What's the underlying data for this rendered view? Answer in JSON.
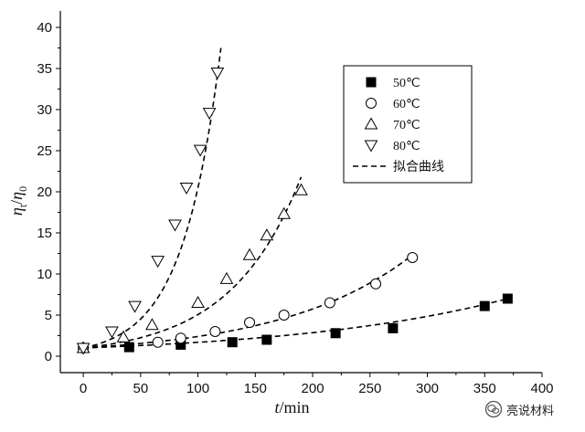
{
  "chart_data": {
    "type": "scatter",
    "xlabel_italic": "t",
    "xlabel_unit": "/min",
    "ylabel": "η_t/η_0",
    "xlim": [
      -20,
      400
    ],
    "ylim": [
      -2,
      42
    ],
    "x_ticks": [
      0,
      50,
      100,
      150,
      200,
      250,
      300,
      350,
      400
    ],
    "y_ticks": [
      0,
      5,
      10,
      15,
      20,
      25,
      30,
      35,
      40
    ],
    "legend_position": "top-right",
    "grid": false,
    "series": [
      {
        "name": "50℃",
        "marker": "filled-square",
        "points": [
          [
            0,
            1.0
          ],
          [
            40,
            1.1
          ],
          [
            85,
            1.4
          ],
          [
            130,
            1.7
          ],
          [
            160,
            2.0
          ],
          [
            220,
            2.8
          ],
          [
            270,
            3.4
          ],
          [
            350,
            6.1
          ],
          [
            370,
            7.0
          ]
        ],
        "fit": {
          "x_max": 370,
          "y_end": 7.0
        }
      },
      {
        "name": "60℃",
        "marker": "open-circle",
        "points": [
          [
            0,
            1.0
          ],
          [
            65,
            1.7
          ],
          [
            85,
            2.2
          ],
          [
            115,
            3.0
          ],
          [
            145,
            4.1
          ],
          [
            175,
            5.0
          ],
          [
            215,
            6.5
          ],
          [
            255,
            8.8
          ],
          [
            287,
            12.0
          ]
        ],
        "fit": {
          "x_max": 287,
          "y_end": 12.3
        }
      },
      {
        "name": "70℃",
        "marker": "open-triangle-up",
        "points": [
          [
            0,
            1.0
          ],
          [
            35,
            2.3
          ],
          [
            60,
            3.8
          ],
          [
            100,
            6.5
          ],
          [
            125,
            9.4
          ],
          [
            145,
            12.3
          ],
          [
            160,
            14.7
          ],
          [
            175,
            17.3
          ],
          [
            190,
            20.2
          ]
        ],
        "fit": {
          "x_max": 190,
          "y_end": 21.8
        }
      },
      {
        "name": "80℃",
        "marker": "open-triangle-down",
        "points": [
          [
            0,
            1.0
          ],
          [
            25,
            3.0
          ],
          [
            45,
            6.1
          ],
          [
            65,
            11.6
          ],
          [
            80,
            16.0
          ],
          [
            90,
            20.5
          ],
          [
            102,
            25.1
          ],
          [
            110,
            29.6
          ],
          [
            117,
            34.5
          ]
        ],
        "fit": {
          "x_max": 120,
          "y_end": 37.5
        }
      }
    ],
    "fit_legend_label": "拟合曲线"
  },
  "watermark": {
    "text": "亮说材料"
  }
}
